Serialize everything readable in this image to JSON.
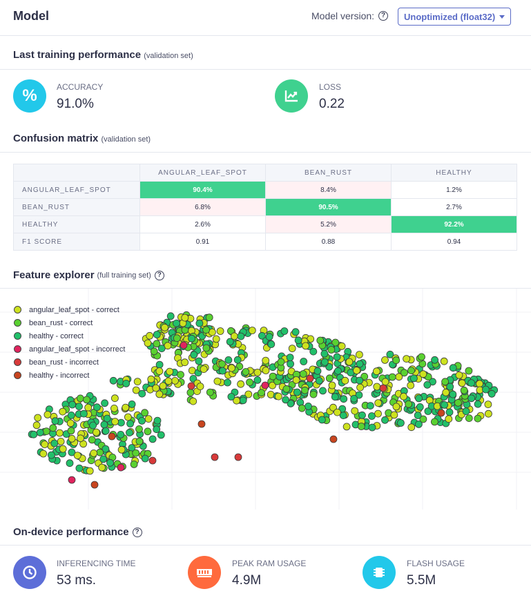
{
  "header": {
    "title": "Model",
    "version_label": "Model version:",
    "version_value": "Unoptimized (float32)"
  },
  "training": {
    "title": "Last training performance",
    "subtitle": "(validation set)",
    "accuracy": {
      "label": "ACCURACY",
      "value": "91.0%",
      "icon": "percent-icon",
      "color": "#22c8ea"
    },
    "loss": {
      "label": "LOSS",
      "value": "0.22",
      "icon": "trending-chart-icon",
      "color": "#3fd18f"
    }
  },
  "confusion": {
    "title": "Confusion matrix",
    "subtitle": "(validation set)",
    "columns": [
      "ANGULAR_LEAF_SPOT",
      "BEAN_RUST",
      "HEALTHY"
    ],
    "rows": [
      {
        "label": "ANGULAR_LEAF_SPOT",
        "values": [
          "90.4%",
          "8.4%",
          "1.2%"
        ]
      },
      {
        "label": "BEAN_RUST",
        "values": [
          "6.8%",
          "90.5%",
          "2.7%"
        ]
      },
      {
        "label": "HEALTHY",
        "values": [
          "2.6%",
          "5.2%",
          "92.2%"
        ]
      }
    ],
    "f1": {
      "label": "F1 SCORE",
      "values": [
        "0.91",
        "0.88",
        "0.94"
      ]
    }
  },
  "explorer": {
    "title": "Feature explorer",
    "subtitle": "(full training set)",
    "legend": [
      {
        "label": "angular_leaf_spot - correct",
        "color": "#cde21f"
      },
      {
        "label": "bean_rust - correct",
        "color": "#5ad131"
      },
      {
        "label": "healthy - correct",
        "color": "#22c06a"
      },
      {
        "label": "angular_leaf_spot - incorrect",
        "color": "#e0245e"
      },
      {
        "label": "bean_rust - incorrect",
        "color": "#d83a3a"
      },
      {
        "label": "healthy - incorrect",
        "color": "#c8451f"
      }
    ]
  },
  "ondevice": {
    "title": "On-device performance",
    "inferencing": {
      "label": "INFERENCING TIME",
      "value": "53 ms.",
      "icon": "clock-icon",
      "color": "#5d6ed8"
    },
    "ram": {
      "label": "PEAK RAM USAGE",
      "value": "4.9M",
      "icon": "memory-icon",
      "color": "#ff6a3d"
    },
    "flash": {
      "label": "FLASH USAGE",
      "value": "5.5M",
      "icon": "chip-icon",
      "color": "#22c8ea"
    }
  }
}
